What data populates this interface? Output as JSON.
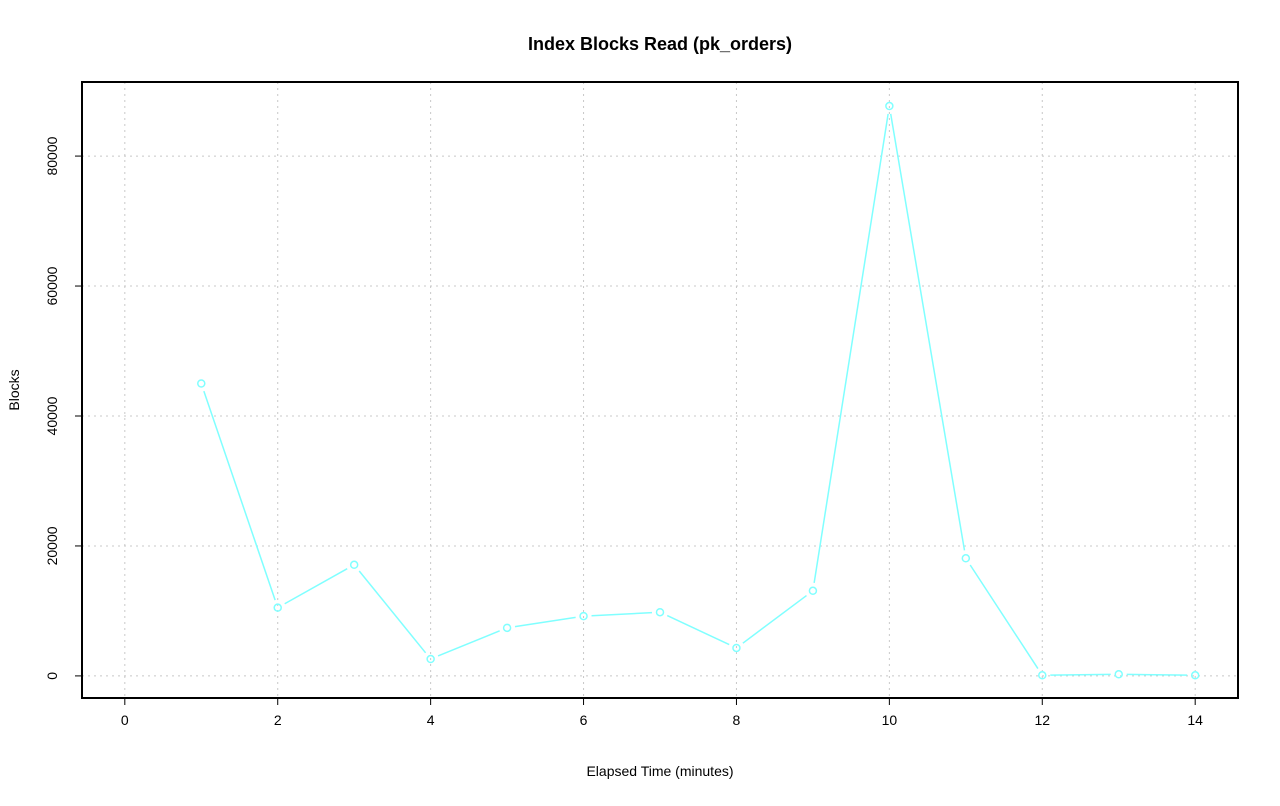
{
  "chart_data": {
    "type": "line",
    "title": "Index Blocks Read (pk_orders)",
    "xlabel": "Elapsed Time (minutes)",
    "ylabel": "Blocks",
    "x": [
      1,
      2,
      3,
      4,
      5,
      6,
      7,
      8,
      9,
      10,
      11,
      12,
      13,
      14
    ],
    "series": [
      {
        "values": [
          45000,
          10500,
          17100,
          2600,
          7400,
          9200,
          9800,
          4300,
          13100,
          87700,
          18100,
          100,
          250,
          100
        ],
        "color": "#80ffff",
        "marker": "open-circle"
      }
    ],
    "xlim": [
      -0.56,
      14.56
    ],
    "ylim": [
      -3400,
      91400
    ],
    "xticks": [
      0,
      2,
      4,
      6,
      8,
      10,
      12,
      14
    ],
    "yticks": [
      0,
      20000,
      40000,
      60000,
      80000
    ],
    "grid": true,
    "grid_color": "#c8c8c8"
  }
}
